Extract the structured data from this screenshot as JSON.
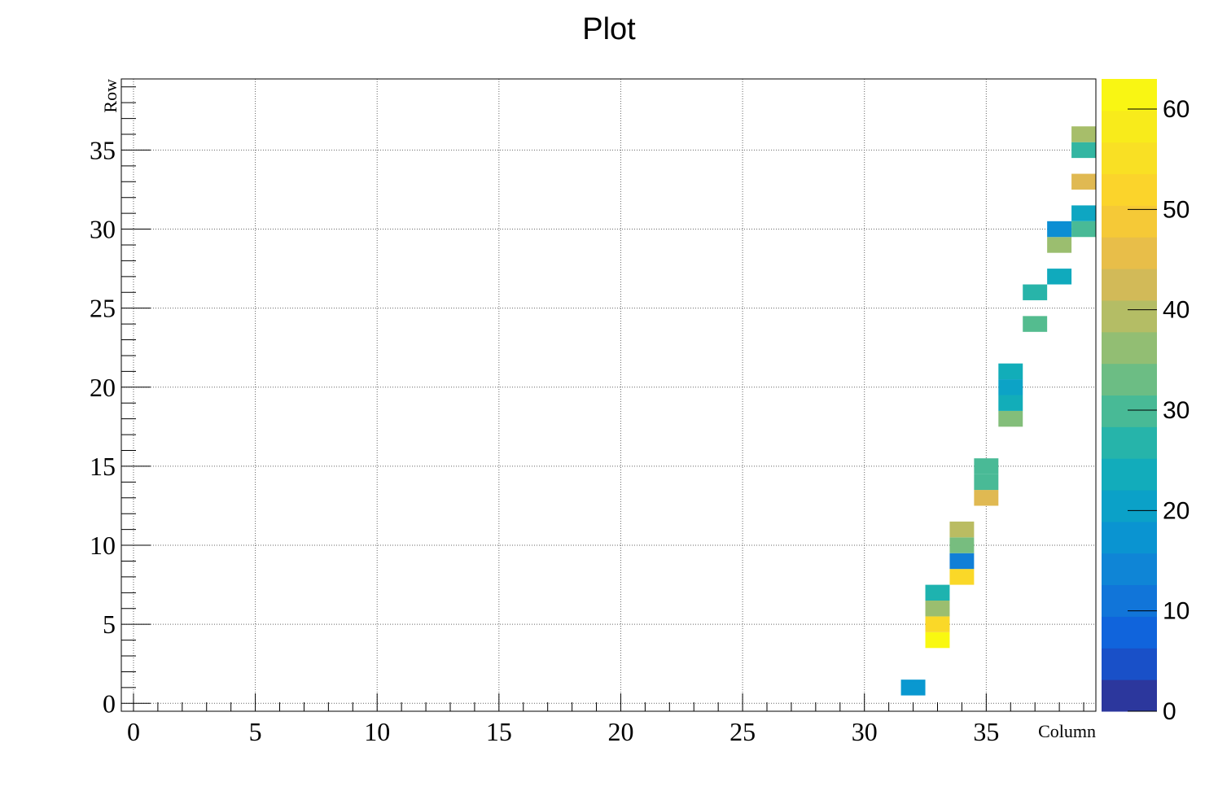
{
  "chart_data": {
    "type": "heatmap",
    "title": "Plot",
    "xlabel": "Column",
    "ylabel": "Row",
    "xlim": [
      -0.5,
      39.5
    ],
    "ylim": [
      -0.5,
      39.5
    ],
    "x_ticks": [
      0,
      5,
      10,
      15,
      20,
      25,
      30,
      35
    ],
    "y_ticks": [
      0,
      5,
      10,
      15,
      20,
      25,
      30,
      35
    ],
    "grid": true,
    "colorbar": {
      "min": 0,
      "max": 63,
      "ticks": [
        0,
        10,
        20,
        30,
        40,
        50,
        60
      ]
    },
    "cells": [
      {
        "x": 32,
        "y": 1,
        "z": 18
      },
      {
        "x": 33,
        "y": 4,
        "z": 62
      },
      {
        "x": 33,
        "y": 5,
        "z": 53
      },
      {
        "x": 33,
        "y": 6,
        "z": 37
      },
      {
        "x": 33,
        "y": 7,
        "z": 26
      },
      {
        "x": 34,
        "y": 8,
        "z": 53
      },
      {
        "x": 34,
        "y": 9,
        "z": 13
      },
      {
        "x": 34,
        "y": 10,
        "z": 34
      },
      {
        "x": 34,
        "y": 11,
        "z": 40
      },
      {
        "x": 35,
        "y": 13,
        "z": 44
      },
      {
        "x": 35,
        "y": 14,
        "z": 30
      },
      {
        "x": 35,
        "y": 15,
        "z": 30
      },
      {
        "x": 36,
        "y": 18,
        "z": 35
      },
      {
        "x": 36,
        "y": 19,
        "z": 24
      },
      {
        "x": 36,
        "y": 20,
        "z": 21
      },
      {
        "x": 36,
        "y": 21,
        "z": 24
      },
      {
        "x": 37,
        "y": 24,
        "z": 31
      },
      {
        "x": 37,
        "y": 26,
        "z": 27
      },
      {
        "x": 38,
        "y": 27,
        "z": 23
      },
      {
        "x": 38,
        "y": 29,
        "z": 37
      },
      {
        "x": 38,
        "y": 30,
        "z": 16
      },
      {
        "x": 39,
        "y": 30,
        "z": 30
      },
      {
        "x": 39,
        "y": 31,
        "z": 22
      },
      {
        "x": 39,
        "y": 33,
        "z": 44
      },
      {
        "x": 39,
        "y": 35,
        "z": 28
      },
      {
        "x": 39,
        "y": 36,
        "z": 38
      }
    ]
  }
}
